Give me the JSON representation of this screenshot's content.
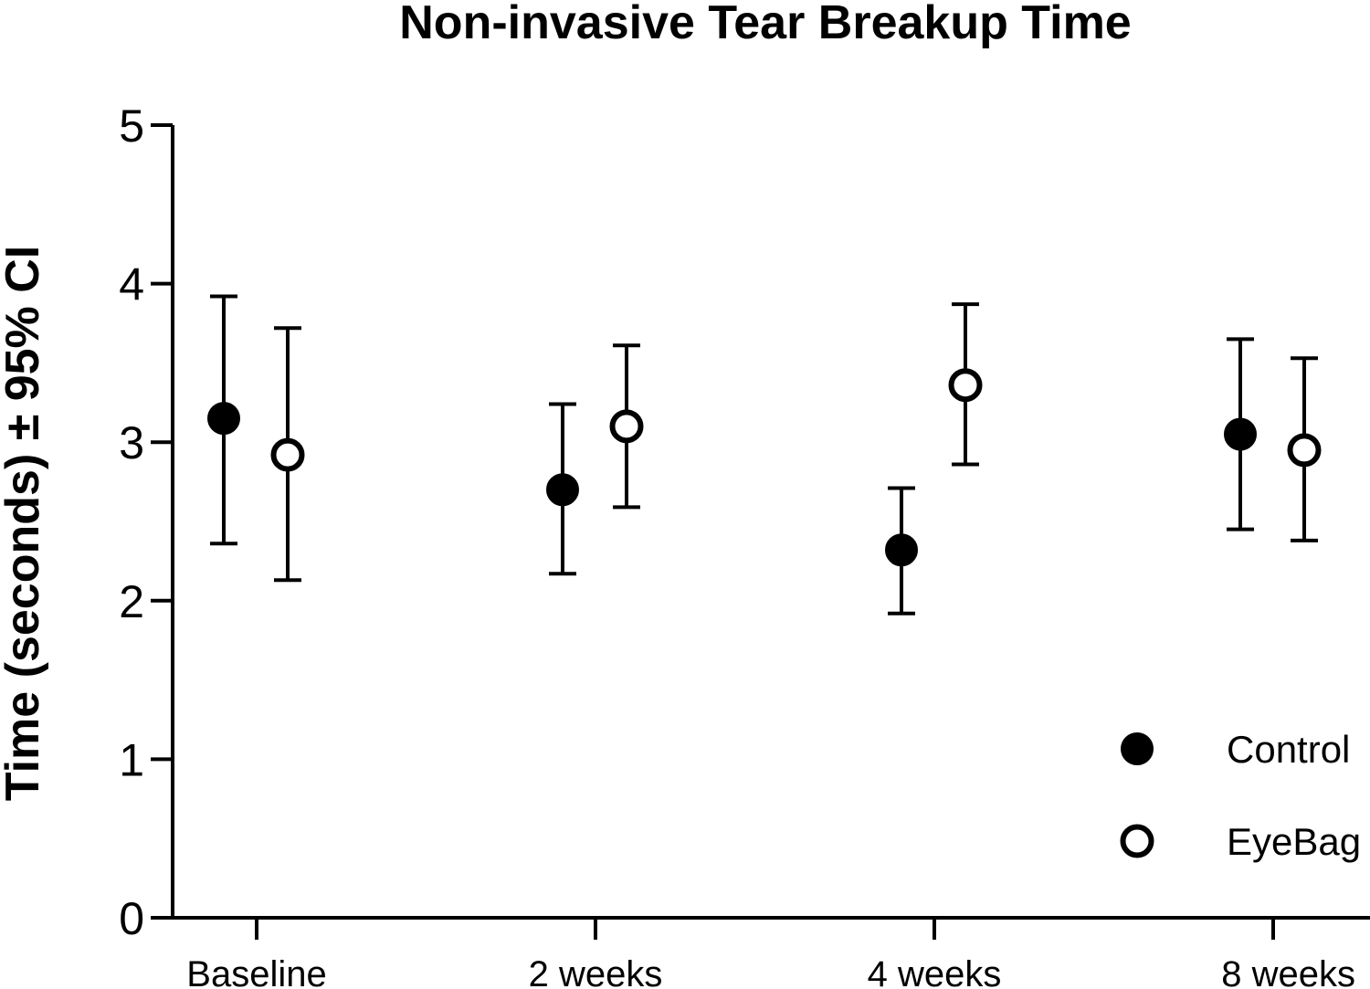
{
  "chart_data": {
    "type": "scatter",
    "title": "Non-invasive Tear Breakup Time",
    "ylabel": "Time (seconds) ± 95% CI",
    "xlabel": "",
    "ylim": [
      0,
      5
    ],
    "yticks": [
      "0",
      "1",
      "2",
      "3",
      "4",
      "5"
    ],
    "categories": [
      "Baseline",
      "2 weeks",
      "4 weeks",
      "8 weeks"
    ],
    "grid": false,
    "legend_position": "bottom-right",
    "series": [
      {
        "name": "Control",
        "marker": "filled-circle",
        "color": "#000000",
        "values": [
          3.15,
          2.7,
          2.32,
          3.05
        ],
        "ci_low": [
          2.36,
          2.17,
          1.92,
          2.45
        ],
        "ci_high": [
          3.92,
          3.24,
          2.71,
          3.65
        ]
      },
      {
        "name": "EyeBag",
        "marker": "open-circle",
        "color": "#000000",
        "values": [
          2.92,
          3.1,
          3.36,
          2.95
        ],
        "ci_low": [
          2.13,
          2.59,
          2.86,
          2.38
        ],
        "ci_high": [
          3.72,
          3.61,
          3.87,
          3.53
        ]
      }
    ]
  }
}
